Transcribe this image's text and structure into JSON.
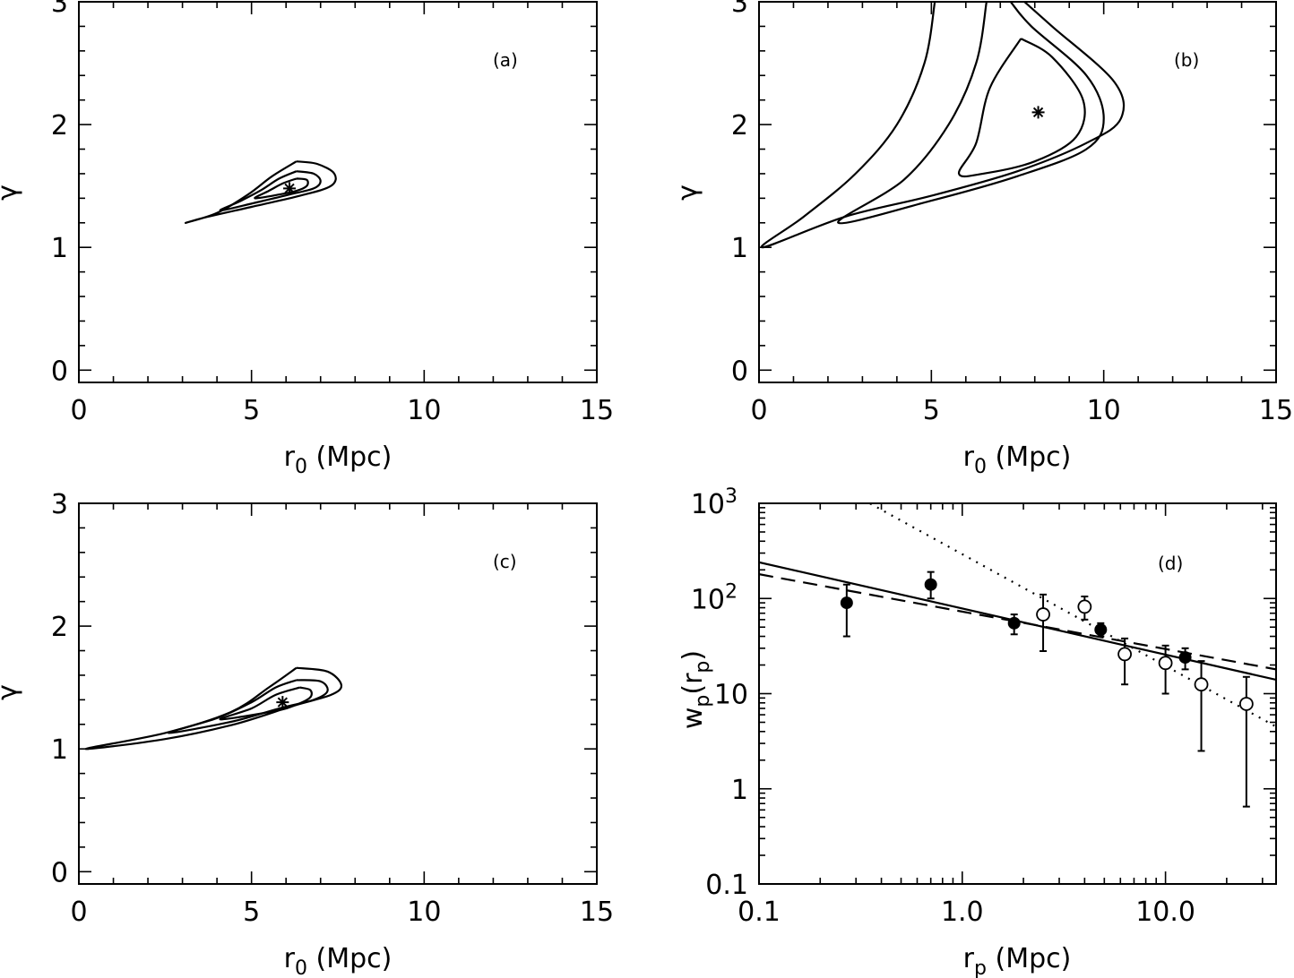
{
  "chart_data": [
    {
      "type": "contour",
      "panel": "(a)",
      "xlabel": "r",
      "xlabel_sub": "0",
      "xlabel_unit": " (Mpc)",
      "ylabel": "γ",
      "xlim": [
        0,
        15
      ],
      "ylim": [
        -0.1,
        3
      ],
      "xticks": [
        "0",
        "5",
        "10",
        "15"
      ],
      "yticks": [
        "0",
        "1",
        "2",
        "3"
      ],
      "best_fit": {
        "r0": 6.1,
        "gamma": 1.48,
        "marker": "*"
      },
      "contours": [
        [
          [
            6.3,
            1.7
          ],
          [
            6.9,
            1.68
          ],
          [
            7.4,
            1.6
          ],
          [
            7.3,
            1.5
          ],
          [
            6.4,
            1.42
          ],
          [
            5.0,
            1.33
          ],
          [
            3.6,
            1.24
          ],
          [
            3.1,
            1.2
          ],
          [
            4.0,
            1.28
          ],
          [
            4.9,
            1.43
          ],
          [
            5.6,
            1.58
          ],
          [
            6.3,
            1.7
          ]
        ],
        [
          [
            6.3,
            1.62
          ],
          [
            6.8,
            1.6
          ],
          [
            7.0,
            1.54
          ],
          [
            6.8,
            1.48
          ],
          [
            6.1,
            1.43
          ],
          [
            5.2,
            1.37
          ],
          [
            4.1,
            1.3
          ],
          [
            4.7,
            1.38
          ],
          [
            5.3,
            1.47
          ],
          [
            5.8,
            1.56
          ],
          [
            6.3,
            1.62
          ]
        ],
        [
          [
            6.3,
            1.56
          ],
          [
            6.6,
            1.55
          ],
          [
            6.6,
            1.5
          ],
          [
            6.3,
            1.46
          ],
          [
            5.8,
            1.43
          ],
          [
            5.1,
            1.4
          ],
          [
            5.5,
            1.46
          ],
          [
            5.9,
            1.52
          ],
          [
            6.3,
            1.56
          ]
        ]
      ]
    },
    {
      "type": "contour",
      "panel": "(b)",
      "xlabel": "r",
      "xlabel_sub": "0",
      "xlabel_unit": " (Mpc)",
      "ylabel": "γ",
      "xlim": [
        0,
        15
      ],
      "ylim": [
        -0.1,
        3
      ],
      "xticks": [
        "0",
        "5",
        "10",
        "15"
      ],
      "yticks": [
        "0",
        "1",
        "2",
        "3"
      ],
      "best_fit": {
        "r0": 8.1,
        "gamma": 2.1,
        "marker": "*"
      },
      "contours": [
        [
          [
            5.1,
            3.0
          ],
          [
            4.8,
            2.5
          ],
          [
            4.0,
            2.0
          ],
          [
            2.8,
            1.6
          ],
          [
            1.3,
            1.25
          ],
          [
            0.1,
            1.0
          ],
          [
            2.5,
            1.25
          ],
          [
            5.0,
            1.42
          ],
          [
            7.5,
            1.62
          ],
          [
            9.5,
            1.85
          ],
          [
            10.5,
            2.05
          ],
          [
            10.3,
            2.35
          ],
          [
            8.5,
            2.8
          ],
          [
            7.7,
            3.0
          ]
        ],
        [
          [
            6.6,
            3.0
          ],
          [
            6.3,
            2.5
          ],
          [
            5.5,
            2.0
          ],
          [
            4.2,
            1.55
          ],
          [
            2.3,
            1.2
          ],
          [
            5.0,
            1.38
          ],
          [
            7.5,
            1.58
          ],
          [
            9.5,
            1.8
          ],
          [
            10.0,
            2.05
          ],
          [
            9.5,
            2.4
          ],
          [
            7.9,
            2.8
          ],
          [
            7.3,
            3.0
          ]
        ],
        [
          [
            7.6,
            2.7
          ],
          [
            8.5,
            2.55
          ],
          [
            9.4,
            2.2
          ],
          [
            9.2,
            1.9
          ],
          [
            8.0,
            1.7
          ],
          [
            6.5,
            1.6
          ],
          [
            5.8,
            1.6
          ],
          [
            6.3,
            1.85
          ],
          [
            6.7,
            2.3
          ],
          [
            7.6,
            2.7
          ]
        ]
      ]
    },
    {
      "type": "contour",
      "panel": "(c)",
      "xlabel": "r",
      "xlabel_sub": "0",
      "xlabel_unit": " (Mpc)",
      "ylabel": "γ",
      "xlim": [
        0,
        15
      ],
      "ylim": [
        -0.1,
        3
      ],
      "xticks": [
        "0",
        "5",
        "10",
        "15"
      ],
      "yticks": [
        "0",
        "1",
        "2",
        "3"
      ],
      "best_fit": {
        "r0": 5.9,
        "gamma": 1.38,
        "marker": "*"
      },
      "contours": [
        [
          [
            6.3,
            1.66
          ],
          [
            7.2,
            1.63
          ],
          [
            7.6,
            1.52
          ],
          [
            7.3,
            1.44
          ],
          [
            6.2,
            1.35
          ],
          [
            4.5,
            1.2
          ],
          [
            2.5,
            1.08
          ],
          [
            0.2,
            1.0
          ],
          [
            2.5,
            1.13
          ],
          [
            4.4,
            1.3
          ],
          [
            5.5,
            1.5
          ],
          [
            6.3,
            1.66
          ]
        ],
        [
          [
            6.3,
            1.56
          ],
          [
            7.0,
            1.55
          ],
          [
            7.2,
            1.47
          ],
          [
            6.8,
            1.4
          ],
          [
            5.8,
            1.33
          ],
          [
            4.4,
            1.22
          ],
          [
            2.6,
            1.13
          ],
          [
            4.0,
            1.25
          ],
          [
            5.0,
            1.38
          ],
          [
            5.7,
            1.5
          ],
          [
            6.3,
            1.56
          ]
        ],
        [
          [
            6.4,
            1.5
          ],
          [
            6.7,
            1.48
          ],
          [
            6.7,
            1.42
          ],
          [
            6.3,
            1.36
          ],
          [
            5.7,
            1.31
          ],
          [
            4.1,
            1.24
          ],
          [
            5.0,
            1.33
          ],
          [
            5.7,
            1.44
          ],
          [
            6.4,
            1.5
          ]
        ]
      ]
    },
    {
      "type": "scatter",
      "panel": "(d)",
      "xlabel": "r",
      "xlabel_sub": "p",
      "xlabel_unit": " (Mpc)",
      "ylabel": "w",
      "ylabel_sub": "p",
      "ylabel_mid": "(r",
      "ylabel_sub2": "p",
      "ylabel_end": ")",
      "xscale": "log",
      "yscale": "log",
      "xlim": [
        0.1,
        35
      ],
      "ylim": [
        0.1,
        1000
      ],
      "xticks": [
        {
          "v": 0.1,
          "label": "0.1"
        },
        {
          "v": 1,
          "label": "1.0"
        },
        {
          "v": 10,
          "label": "10.0"
        }
      ],
      "yticks": [
        {
          "v": 0.1,
          "label": "0.1"
        },
        {
          "v": 1,
          "label": "1"
        },
        {
          "v": 10,
          "label": "10"
        },
        {
          "v": 100,
          "label": "10",
          "exp": "2"
        },
        {
          "v": 1000,
          "label": "10",
          "exp": "3"
        }
      ],
      "series": [
        {
          "name": "filled",
          "marker": "filled-circle",
          "x": [
            0.27,
            0.7,
            1.8,
            4.8,
            12.5
          ],
          "y": [
            90,
            140,
            55,
            47,
            24
          ],
          "ylo": [
            40,
            100,
            42,
            40,
            18
          ],
          "yhi": [
            140,
            190,
            68,
            55,
            30
          ]
        },
        {
          "name": "open",
          "marker": "open-circle",
          "x": [
            2.5,
            4.0,
            6.3,
            10.0,
            15.0,
            25.0
          ],
          "y": [
            68,
            82,
            26,
            21,
            12.5,
            7.8
          ],
          "ylo": [
            28,
            60,
            12.5,
            10,
            2.5,
            0.65
          ],
          "yhi": [
            110,
            105,
            38,
            32,
            22,
            15
          ]
        },
        {
          "name": "solid",
          "style": "solid",
          "x": [
            0.1,
            35
          ],
          "y": [
            240,
            14
          ]
        },
        {
          "name": "dashed",
          "style": "dashed",
          "x": [
            0.1,
            35
          ],
          "y": [
            180,
            18
          ]
        },
        {
          "name": "dotted",
          "style": "dotted",
          "x": [
            0.3,
            35
          ],
          "y": [
            1200,
            4.5
          ]
        }
      ]
    }
  ]
}
